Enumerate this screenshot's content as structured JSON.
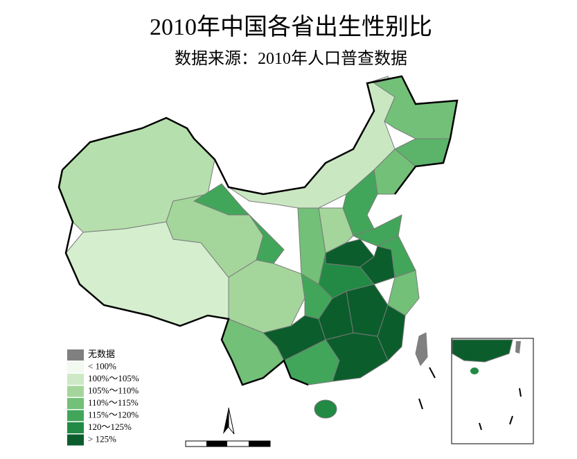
{
  "title": "2010年中国各省出生性别比",
  "subtitle": "数据来源：2010年人口普查数据",
  "legend": {
    "items": [
      {
        "label": "无数据",
        "color": "#808080"
      },
      {
        "label": "< 100%",
        "color": "#f2f9f0"
      },
      {
        "label": "100%～105%",
        "color": "#cde9c6"
      },
      {
        "label": "105%～110%",
        "color": "#a4d69b"
      },
      {
        "label": "110%～115%",
        "color": "#73c078"
      },
      {
        "label": "115%～120%",
        "color": "#42a65a"
      },
      {
        "label": "120～125%",
        "color": "#228a45"
      },
      {
        "label": "> 125%",
        "color": "#0b5e2c"
      }
    ]
  }
}
